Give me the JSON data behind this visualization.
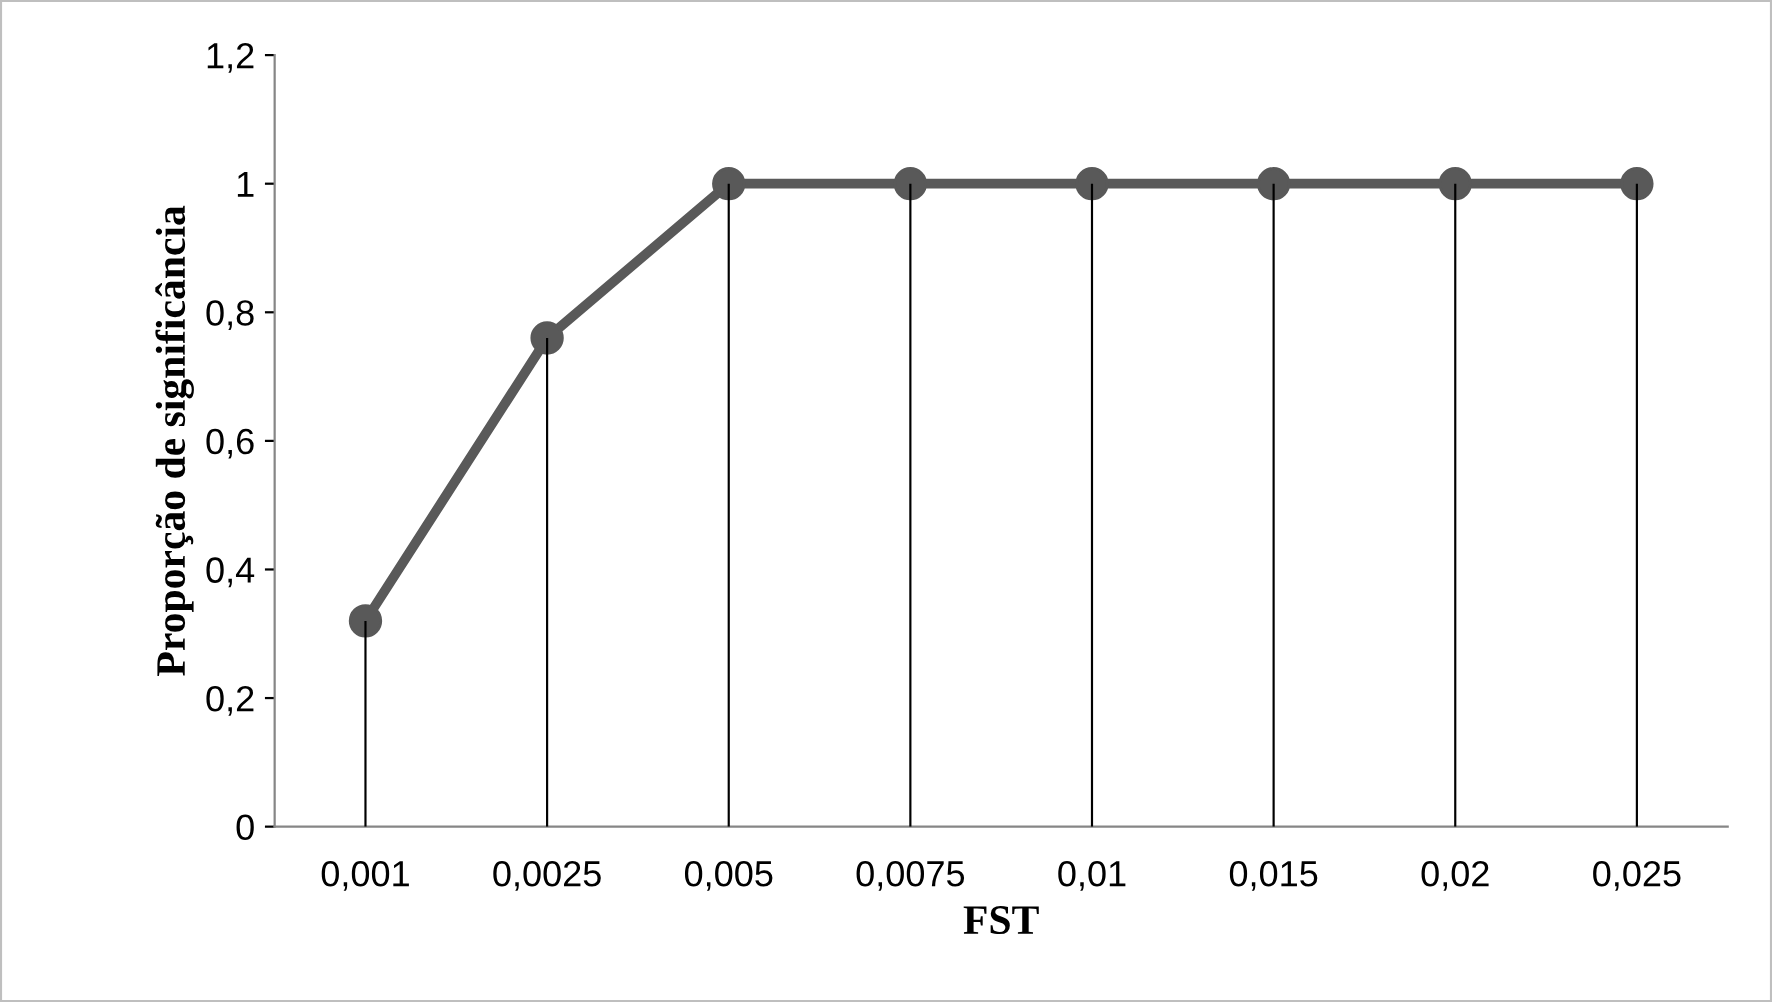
{
  "chart_data": {
    "type": "line",
    "xlabel": "FST",
    "ylabel": "Proporção de significância",
    "categories": [
      "0,001",
      "0,0025",
      "0,005",
      "0,0075",
      "0,01",
      "0,015",
      "0,02",
      "0,025"
    ],
    "series": [
      {
        "type": "bar",
        "color": "#000000",
        "values": [
          0.32,
          0.76,
          1,
          1,
          1,
          1,
          1,
          1
        ]
      },
      {
        "color": "#595959",
        "values": [
          0.32,
          0.76,
          1,
          1,
          1,
          1,
          1,
          1
        ]
      }
    ],
    "ylim": [
      0,
      1.2
    ],
    "yticks": [
      0,
      {
        "value": 0.2,
        "label": "0,2"
      },
      {
        "value": 0.4,
        "label": "0,4"
      },
      {
        "value": 0.6,
        "label": "0,6"
      },
      {
        "value": 0.8,
        "label": "0,8"
      },
      1,
      {
        "value": 1.2,
        "label": "1,2"
      }
    ],
    "marker": "circle",
    "line_style": "solid",
    "grid": false,
    "legend": false
  }
}
